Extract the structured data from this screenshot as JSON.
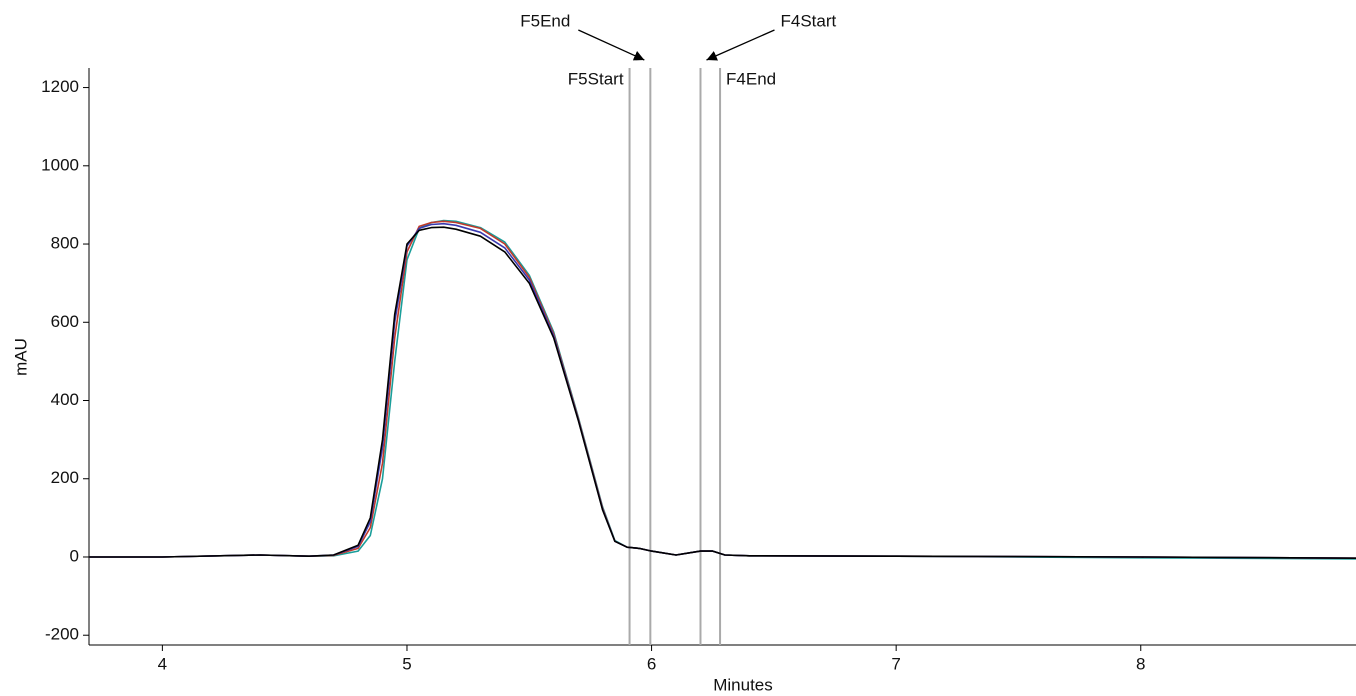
{
  "chart_data": {
    "type": "line",
    "x_label": "Minutes",
    "y_label": "mAU",
    "x": [
      3.7,
      4.0,
      4.4,
      4.6,
      4.7,
      4.8,
      4.85,
      4.9,
      4.95,
      5.0,
      5.05,
      5.1,
      5.15,
      5.2,
      5.3,
      5.4,
      5.5,
      5.6,
      5.7,
      5.8,
      5.85,
      5.9,
      5.95,
      6.0,
      6.1,
      6.2,
      6.25,
      6.3,
      6.4,
      7.0,
      8.0,
      8.88
    ],
    "series": [
      {
        "color": "#1a9e9a",
        "values": [
          0,
          0,
          5,
          2,
          3,
          15,
          55,
          200,
          500,
          760,
          840,
          855,
          860,
          858,
          842,
          805,
          720,
          575,
          358,
          128,
          42,
          25,
          22,
          15,
          5,
          15,
          15,
          5,
          3,
          2,
          -2,
          -5
        ]
      },
      {
        "color": "#c0392b",
        "values": [
          0,
          0,
          5,
          2,
          4,
          22,
          75,
          240,
          560,
          780,
          845,
          855,
          858,
          855,
          840,
          800,
          715,
          570,
          355,
          125,
          40,
          25,
          22,
          15,
          5,
          15,
          15,
          5,
          3,
          2,
          0,
          -3
        ]
      },
      {
        "color": "#3a3ab0",
        "values": [
          0,
          0,
          5,
          2,
          5,
          27,
          90,
          280,
          600,
          795,
          840,
          850,
          852,
          848,
          830,
          790,
          708,
          565,
          352,
          122,
          40,
          25,
          22,
          15,
          5,
          15,
          15,
          5,
          3,
          2,
          0,
          -3
        ]
      },
      {
        "color": "#000000",
        "values": [
          0,
          0,
          5,
          2,
          5,
          30,
          100,
          300,
          620,
          800,
          835,
          842,
          843,
          838,
          820,
          780,
          700,
          560,
          350,
          120,
          40,
          25,
          22,
          15,
          5,
          15,
          15,
          5,
          3,
          2,
          0,
          -3
        ]
      }
    ],
    "markers": [
      {
        "label": "F5Start",
        "x": 5.91
      },
      {
        "label": "F5End",
        "x": 5.995
      },
      {
        "label": "F4Start",
        "x": 6.2
      },
      {
        "label": "F4End",
        "x": 6.28
      }
    ],
    "marker_color": "#aaaaaa",
    "xlim": [
      3.7,
      8.88
    ],
    "xticks": [
      4,
      5,
      6,
      7,
      8
    ],
    "ylim": [
      -225,
      1250
    ],
    "yticks": [
      -200,
      0,
      200,
      400,
      600,
      800,
      1000,
      1200
    ],
    "grid": false
  }
}
